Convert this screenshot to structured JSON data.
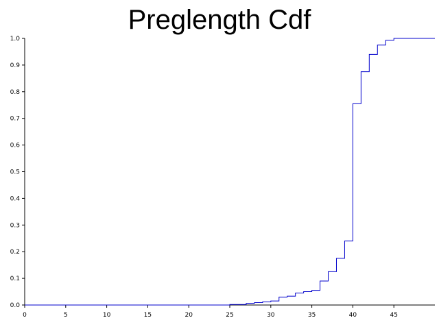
{
  "chart_data": {
    "type": "line",
    "step": true,
    "title": "Preglength Cdf",
    "xlabel": "",
    "ylabel": "",
    "xlim": [
      0,
      50
    ],
    "ylim": [
      0,
      1
    ],
    "grid": false,
    "line_color": "#0000cc",
    "x_ticks": [
      0,
      5,
      10,
      15,
      20,
      25,
      30,
      35,
      40,
      45
    ],
    "x_tick_labels": [
      "0",
      "5",
      "10",
      "15",
      "20",
      "25",
      "30",
      "35",
      "40",
      "45"
    ],
    "y_ticks": [
      0,
      0.1,
      0.2,
      0.3,
      0.4,
      0.5,
      0.6,
      0.7,
      0.8,
      0.9,
      1.0
    ],
    "y_tick_labels": [
      "0.0",
      "0.1",
      "0.2",
      "0.3",
      "0.4",
      "0.5",
      "0.6",
      "0.7",
      "0.8",
      "0.9",
      "1.0"
    ],
    "series": [
      {
        "x": [
          0,
          25,
          27,
          28,
          29,
          30,
          31,
          32,
          33,
          34,
          35,
          36,
          37,
          38,
          39,
          40,
          41,
          42,
          43,
          44,
          45,
          50
        ],
        "y": [
          0.0,
          0.002,
          0.006,
          0.009,
          0.012,
          0.015,
          0.03,
          0.033,
          0.045,
          0.05,
          0.055,
          0.09,
          0.125,
          0.175,
          0.24,
          0.755,
          0.875,
          0.94,
          0.975,
          0.993,
          1.0,
          1.0
        ]
      }
    ]
  }
}
